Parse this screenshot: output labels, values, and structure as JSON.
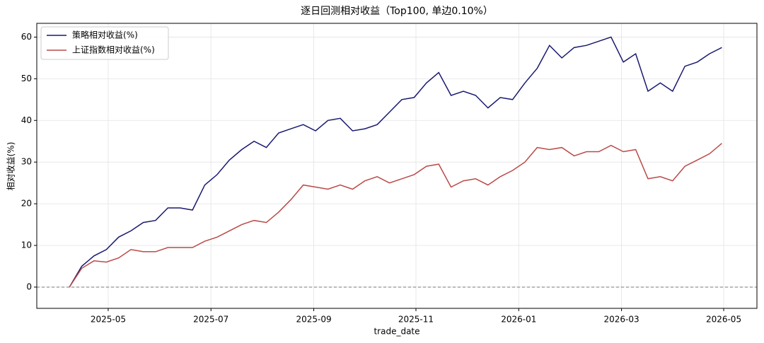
{
  "chart_data": {
    "type": "line",
    "title": "逐日回测相对收益（Top100, 单边0.10%）",
    "x_label": "trade_date",
    "y_label": "相对收益(%)",
    "x": [
      2025.27,
      2025.29,
      2025.31,
      2025.33,
      2025.35,
      2025.37,
      2025.39,
      2025.41,
      2025.43,
      2025.45,
      2025.47,
      2025.49,
      2025.51,
      2025.53,
      2025.55,
      2025.57,
      2025.59,
      2025.61,
      2025.63,
      2025.65,
      2025.67,
      2025.69,
      2025.71,
      2025.73,
      2025.75,
      2025.77,
      2025.79,
      2025.81,
      2025.83,
      2025.85,
      2025.87,
      2025.89,
      2025.91,
      2025.93,
      2025.95,
      2025.97,
      2025.99,
      2026.01,
      2026.03,
      2026.05,
      2026.07,
      2026.09,
      2026.11,
      2026.13,
      2026.15,
      2026.17,
      2026.19,
      2026.21,
      2026.23,
      2026.25,
      2026.27,
      2026.29,
      2026.31,
      2026.33
    ],
    "series": [
      {
        "name": "策略相对收益(%)",
        "color": "#191970",
        "values": [
          0,
          5,
          7.5,
          9,
          12,
          13.5,
          15.5,
          16,
          19,
          19,
          18.5,
          24.5,
          27,
          30.5,
          33,
          35,
          33.5,
          37,
          38,
          39,
          37.5,
          40,
          40.5,
          37.5,
          38,
          39,
          42,
          45,
          45.5,
          49,
          51.5,
          46,
          47,
          46,
          43,
          45.5,
          45,
          49,
          52.5,
          58,
          55,
          57.5,
          58,
          59,
          60,
          54,
          56,
          47,
          49,
          47,
          53,
          54,
          56,
          57.5
        ]
      },
      {
        "name": "上证指数相对收益(%)",
        "color": "#b94a48",
        "values": [
          0,
          4.5,
          6.3,
          6,
          7,
          9,
          8.5,
          8.5,
          9.5,
          9.5,
          9.5,
          11,
          12,
          13.5,
          15,
          16,
          15.5,
          18,
          21,
          24.5,
          24,
          23.5,
          24.5,
          23.5,
          25.5,
          26.5,
          25,
          26,
          27,
          29,
          29.5,
          24,
          25.5,
          26,
          24.5,
          26.5,
          28,
          30,
          33.5,
          33,
          33.5,
          31.5,
          32.5,
          32.5,
          34,
          32.5,
          33,
          26,
          26.5,
          25.5,
          29,
          30.5,
          32,
          34.5
        ]
      }
    ],
    "reference_line": 0,
    "xlim": [
      2025.217,
      2026.387
    ],
    "xticks": [
      {
        "value": 2025.333,
        "label": "2025-05"
      },
      {
        "value": 2025.5,
        "label": "2025-07"
      },
      {
        "value": 2025.667,
        "label": "2025-09"
      },
      {
        "value": 2025.833,
        "label": "2025-11"
      },
      {
        "value": 2026.0,
        "label": "2026-01"
      },
      {
        "value": 2026.167,
        "label": "2026-03"
      },
      {
        "value": 2026.333,
        "label": "2026-05"
      }
    ],
    "ylim": [
      -5.1,
      63.3
    ],
    "yticks": [
      0,
      10,
      20,
      30,
      40,
      50,
      60
    ],
    "grid": true,
    "legend": "upper left"
  }
}
